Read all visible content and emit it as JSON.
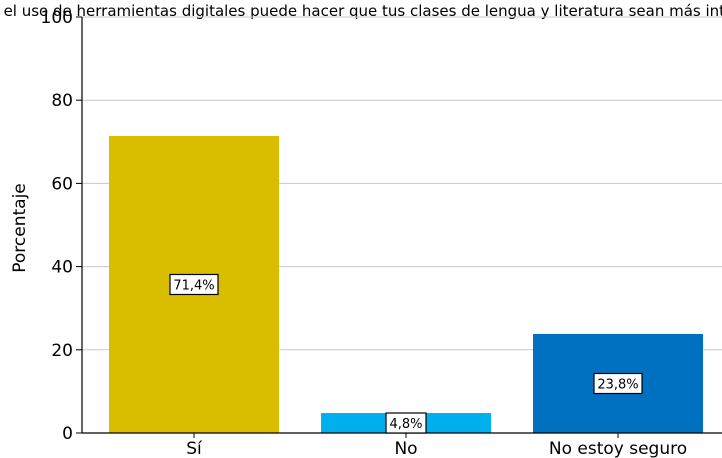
{
  "chart_data": {
    "type": "bar",
    "title": "¿Crees que el uso de herramientas digitales puede hacer que tus clases de lengua y literatura sean más interesantes?",
    "xlabel": "",
    "ylabel": "Porcentaje",
    "ylim": [
      0,
      100
    ],
    "yticks": [
      0,
      20,
      40,
      60,
      80,
      100
    ],
    "grid": "y",
    "categories": [
      "Sí",
      "No",
      "No estoy seguro"
    ],
    "values": [
      71.4,
      4.8,
      23.8
    ],
    "data_labels": [
      "71,4%",
      "4,8%",
      "23,8%"
    ],
    "colors": [
      "#d9be00",
      "#00b0ee",
      "#0070c0"
    ]
  }
}
